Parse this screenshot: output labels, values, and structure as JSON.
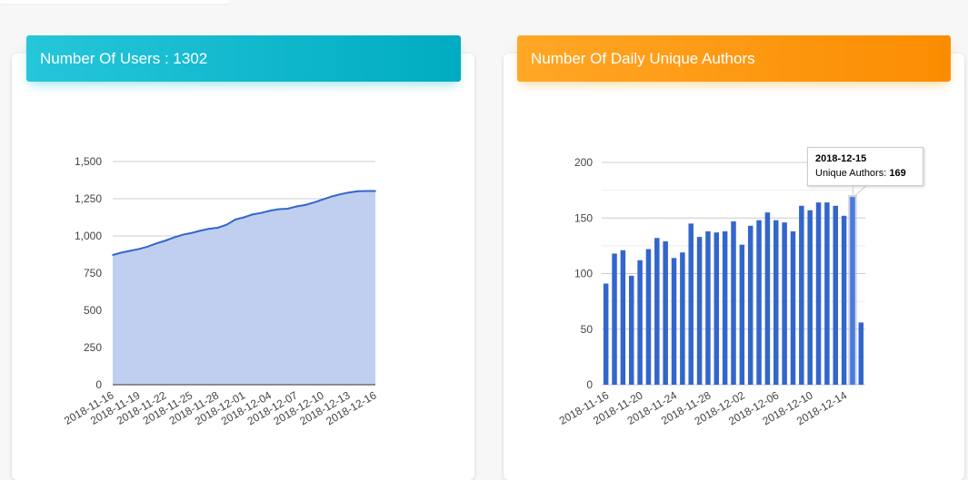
{
  "cards": {
    "users": {
      "title": "Number Of Users : 1302"
    },
    "authors": {
      "title": "Number Of Daily Unique Authors"
    }
  },
  "tooltip": {
    "date": "2018-12-15",
    "label": "Unique Authors:",
    "value": "169"
  },
  "colors": {
    "users_header": "#00bcd4",
    "authors_header": "#ff9800",
    "line": "#3366cc",
    "area": "#c0cff0",
    "bar": "#3366cc"
  },
  "chart_data": [
    {
      "type": "area",
      "title": "",
      "xlabel": "",
      "ylabel": "",
      "ylim": [
        0,
        1500
      ],
      "yticks": [
        "0",
        "250",
        "500",
        "750",
        "1,000",
        "1,250",
        "1,500"
      ],
      "ytick_values": [
        0,
        250,
        500,
        750,
        1000,
        1250,
        1500
      ],
      "xtick_labels": [
        "2018-11-16",
        "2018-11-19",
        "2018-11-22",
        "2018-11-25",
        "2018-11-28",
        "2018-12-01",
        "2018-12-04",
        "2018-12-07",
        "2018-12-10",
        "2018-12-13",
        "2018-12-16"
      ],
      "grid": true,
      "x": [
        "2018-11-16",
        "2018-11-17",
        "2018-11-18",
        "2018-11-19",
        "2018-11-20",
        "2018-11-21",
        "2018-11-22",
        "2018-11-23",
        "2018-11-24",
        "2018-11-25",
        "2018-11-26",
        "2018-11-27",
        "2018-11-28",
        "2018-11-29",
        "2018-11-30",
        "2018-12-01",
        "2018-12-02",
        "2018-12-03",
        "2018-12-04",
        "2018-12-05",
        "2018-12-06",
        "2018-12-07",
        "2018-12-08",
        "2018-12-09",
        "2018-12-10",
        "2018-12-11",
        "2018-12-12",
        "2018-12-13",
        "2018-12-14",
        "2018-12-15",
        "2018-12-16"
      ],
      "series": [
        {
          "values": [
            872,
            888,
            900,
            912,
            928,
            950,
            968,
            990,
            1008,
            1020,
            1035,
            1048,
            1055,
            1075,
            1110,
            1125,
            1145,
            1155,
            1170,
            1180,
            1183,
            1198,
            1208,
            1225,
            1245,
            1265,
            1280,
            1292,
            1300,
            1302,
            1302
          ]
        }
      ]
    },
    {
      "type": "bar",
      "title": "",
      "xlabel": "",
      "ylabel": "",
      "ylim": [
        0,
        200
      ],
      "yticks": [
        "0",
        "50",
        "100",
        "150",
        "200"
      ],
      "ytick_values": [
        0,
        50,
        100,
        150,
        200
      ],
      "xtick_labels": [
        "2018-11-16",
        "2018-11-20",
        "2018-11-24",
        "2018-11-28",
        "2018-12-02",
        "2018-12-06",
        "2018-12-10",
        "2018-12-14"
      ],
      "grid": true,
      "categories": [
        "2018-11-16",
        "2018-11-17",
        "2018-11-18",
        "2018-11-19",
        "2018-11-20",
        "2018-11-21",
        "2018-11-22",
        "2018-11-23",
        "2018-11-24",
        "2018-11-25",
        "2018-11-26",
        "2018-11-27",
        "2018-11-28",
        "2018-11-29",
        "2018-11-30",
        "2018-12-01",
        "2018-12-02",
        "2018-12-03",
        "2018-12-04",
        "2018-12-05",
        "2018-12-06",
        "2018-12-07",
        "2018-12-08",
        "2018-12-09",
        "2018-12-10",
        "2018-12-11",
        "2018-12-12",
        "2018-12-13",
        "2018-12-14",
        "2018-12-15",
        "2018-12-16"
      ],
      "series": [
        {
          "name": "Unique Authors",
          "values": [
            91,
            118,
            121,
            98,
            112,
            122,
            132,
            129,
            114,
            119,
            145,
            133,
            138,
            137,
            138,
            147,
            126,
            143,
            148,
            155,
            148,
            146,
            138,
            161,
            157,
            164,
            164,
            161,
            152,
            169,
            56
          ]
        }
      ]
    }
  ]
}
